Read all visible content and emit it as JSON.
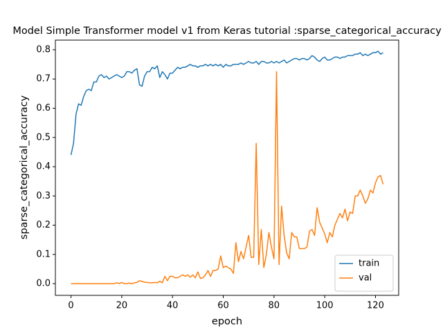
{
  "chart_data": {
    "type": "line",
    "title": "Model Simple Transformer model v1 from Keras tutorial :sparse_categorical_accuracy",
    "x_label": "epoch",
    "y_label": "sparse_categorical_accuracy",
    "x": [
      0,
      1,
      2,
      3,
      4,
      5,
      6,
      7,
      8,
      9,
      10,
      11,
      12,
      13,
      14,
      15,
      16,
      17,
      18,
      19,
      20,
      21,
      22,
      23,
      24,
      25,
      26,
      27,
      28,
      29,
      30,
      31,
      32,
      33,
      34,
      35,
      36,
      37,
      38,
      39,
      40,
      41,
      42,
      43,
      44,
      45,
      46,
      47,
      48,
      49,
      50,
      51,
      52,
      53,
      54,
      55,
      56,
      57,
      58,
      59,
      60,
      61,
      62,
      63,
      64,
      65,
      66,
      67,
      68,
      69,
      70,
      71,
      72,
      73,
      74,
      75,
      76,
      77,
      78,
      79,
      80,
      81,
      82,
      83,
      84,
      85,
      86,
      87,
      88,
      89,
      90,
      91,
      92,
      93,
      94,
      95,
      96,
      97,
      98,
      99,
      100,
      101,
      102,
      103,
      104,
      105,
      106,
      107,
      108,
      109,
      110,
      111,
      112,
      113,
      114,
      115,
      116,
      117,
      118,
      119,
      120,
      121,
      122,
      123
    ],
    "series": [
      {
        "name": "train",
        "color": "#1f77b4",
        "values": [
          0.44,
          0.48,
          0.58,
          0.615,
          0.61,
          0.64,
          0.66,
          0.665,
          0.66,
          0.69,
          0.69,
          0.71,
          0.715,
          0.705,
          0.71,
          0.7,
          0.705,
          0.71,
          0.715,
          0.71,
          0.705,
          0.71,
          0.725,
          0.725,
          0.72,
          0.73,
          0.735,
          0.68,
          0.675,
          0.71,
          0.725,
          0.725,
          0.74,
          0.735,
          0.745,
          0.705,
          0.725,
          0.715,
          0.7,
          0.72,
          0.72,
          0.73,
          0.74,
          0.735,
          0.74,
          0.74,
          0.745,
          0.75,
          0.745,
          0.745,
          0.74,
          0.745,
          0.745,
          0.75,
          0.745,
          0.75,
          0.745,
          0.75,
          0.745,
          0.75,
          0.74,
          0.75,
          0.745,
          0.745,
          0.75,
          0.75,
          0.75,
          0.755,
          0.75,
          0.755,
          0.76,
          0.755,
          0.755,
          0.76,
          0.75,
          0.76,
          0.76,
          0.755,
          0.755,
          0.76,
          0.755,
          0.76,
          0.755,
          0.76,
          0.765,
          0.755,
          0.76,
          0.765,
          0.77,
          0.77,
          0.765,
          0.77,
          0.77,
          0.765,
          0.77,
          0.78,
          0.775,
          0.765,
          0.76,
          0.77,
          0.775,
          0.765,
          0.765,
          0.77,
          0.775,
          0.775,
          0.77,
          0.775,
          0.775,
          0.78,
          0.78,
          0.78,
          0.785,
          0.785,
          0.79,
          0.78,
          0.785,
          0.78,
          0.785,
          0.79,
          0.79,
          0.795,
          0.785,
          0.79
        ]
      },
      {
        "name": "val",
        "color": "#ff7f0e",
        "values": [
          0,
          0,
          0,
          0,
          0,
          0,
          0,
          0,
          0,
          0,
          0,
          0,
          0,
          0,
          0,
          0,
          0,
          0,
          0.003,
          0,
          0.004,
          0,
          0,
          0.002,
          0,
          0.003,
          0.004,
          0.01,
          0.008,
          0.005,
          0.004,
          0.003,
          0.003,
          0.004,
          0.003,
          0.008,
          0.003,
          0.025,
          0.01,
          0.025,
          0.025,
          0.02,
          0.02,
          0.025,
          0.03,
          0.025,
          0.03,
          0.022,
          0.03,
          0.02,
          0.04,
          0.018,
          0.02,
          0.03,
          0.045,
          0.025,
          0.045,
          0.045,
          0.05,
          0.095,
          0.055,
          0.06,
          0.055,
          0.05,
          0.035,
          0.14,
          0.075,
          0.11,
          0.085,
          0.125,
          0.165,
          0.09,
          0.09,
          0.48,
          0.065,
          0.185,
          0.055,
          0.1,
          0.175,
          0.125,
          0.085,
          0.725,
          0.065,
          0.265,
          0.165,
          0.105,
          0.085,
          0.175,
          0.16,
          0.16,
          0.12,
          0.12,
          0.12,
          0.125,
          0.18,
          0.185,
          0.165,
          0.26,
          0.21,
          0.19,
          0.17,
          0.14,
          0.175,
          0.16,
          0.2,
          0.22,
          0.24,
          0.225,
          0.255,
          0.215,
          0.245,
          0.24,
          0.3,
          0.3,
          0.32,
          0.3,
          0.275,
          0.29,
          0.32,
          0.31,
          0.345,
          0.365,
          0.37,
          0.34
        ]
      }
    ],
    "xlim": [
      -6.15,
      129.15
    ],
    "xticks": [
      0,
      20,
      40,
      60,
      80,
      100,
      120
    ],
    "ylim": [
      -0.04,
      0.833
    ],
    "yticks": [
      {
        "value": 0,
        "label": "0.0"
      },
      0.1,
      0.2,
      0.3,
      0.4,
      0.5,
      0.6,
      0.7,
      0.8
    ],
    "legend": "lower right"
  }
}
